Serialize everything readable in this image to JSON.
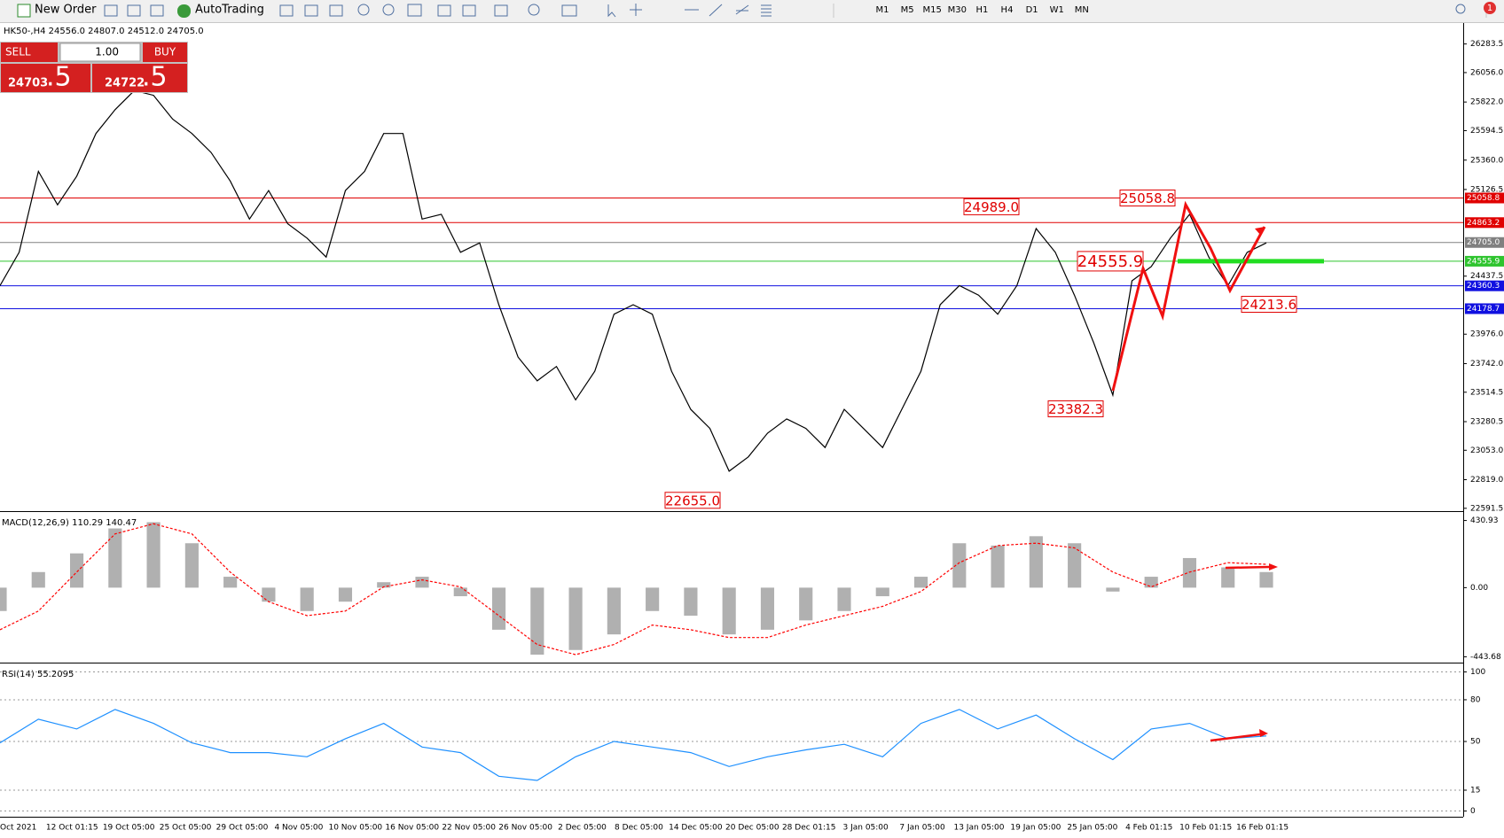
{
  "toolbar": {
    "buttons": [
      "New Order",
      "AutoTrading"
    ],
    "timeframes": [
      "M1",
      "M5",
      "M15",
      "M30",
      "H1",
      "H4",
      "D1",
      "W1",
      "MN"
    ],
    "notifications": "1"
  },
  "trade_panel": {
    "sell": "SELL",
    "buy": "BUY",
    "volume": "1.00",
    "bid_main": "24703",
    "bid_pips": ".5",
    "ask_main": "24722",
    "ask_pips": ".5"
  },
  "chart_data": [
    {
      "type": "line",
      "title": "HK50-,H4 24556.0 24807.0 24512.0 24705.0",
      "series": [
        {
          "color": "#000000",
          "values": [
            24362,
            24627,
            25270,
            25005,
            25232,
            25572,
            25761,
            25913,
            25875,
            25686,
            25572,
            25421,
            25194,
            24891,
            25118,
            24854,
            24740,
            24589,
            25118,
            25270,
            25572,
            25572,
            24891,
            24929,
            24627,
            24702,
            24210,
            23794,
            23605,
            23719,
            23454,
            23681,
            24135,
            24210,
            24135,
            23681,
            23378,
            23227,
            22887,
            23000,
            23189,
            23302,
            23227,
            23075,
            23378,
            23227,
            23075,
            23378,
            23681,
            24210,
            24362,
            24286,
            24135,
            24362,
            24816,
            24627,
            24286,
            23908,
            23492,
            24400,
            24513,
            24740,
            24929,
            24589,
            24362,
            24627,
            24702
          ]
        }
      ],
      "ylim": [
        22569,
        26450
      ],
      "yticks": [
        26283.5,
        {
          "value": 26056,
          "label": "26056.0"
        },
        {
          "value": 25822,
          "label": "25822.0"
        },
        25594.5,
        {
          "value": 25360,
          "label": "25360.0"
        },
        25126.5,
        24437.5,
        {
          "value": 23976,
          "label": "23976.0"
        },
        {
          "value": 23742,
          "label": "23742.0"
        },
        23514.5,
        23280.5,
        {
          "value": 23053,
          "label": "23053.0"
        },
        {
          "value": 22819,
          "label": "22819.0"
        },
        22591.5
      ],
      "grid": false,
      "levels": [
        {
          "value": 25058.8,
          "label": "25058.8",
          "color": "#e00000"
        },
        {
          "value": 24863.2,
          "label": "24863.2",
          "color": "#e00000"
        },
        {
          "value": 24705,
          "label": "24705.0",
          "color": "#808080"
        },
        {
          "value": 24555.9,
          "label": "24555.9",
          "color": "#2ec42e"
        },
        {
          "value": 24360.3,
          "label": "24360.3",
          "color": "#1010e0"
        },
        {
          "value": 24178.7,
          "label": "24178.7",
          "color": "#1010e0"
        }
      ],
      "annotations": [
        {
          "value": 24989,
          "label": "24989.0"
        },
        {
          "value": 25058.8,
          "label": "25058.8"
        },
        {
          "value": 24555.9,
          "label": "24555.9"
        },
        {
          "value": 24213.6,
          "label": "24213.6"
        },
        {
          "value": 23382.3,
          "label": "23382.3"
        },
        {
          "value": 22655,
          "label": "22655.0"
        }
      ]
    },
    {
      "type": "bar",
      "title": "MACD(12,26,9) 110.29 140.47",
      "series": [
        {
          "kind": "histogram",
          "color": "#b0b0b0",
          "values": [
            -150,
            100,
            220,
            380,
            420,
            285,
            70,
            -90,
            -150,
            -90,
            35,
            70,
            -55,
            -270,
            -430,
            -400,
            -300,
            -150,
            -180,
            -300,
            -270,
            -210,
            -150,
            -55,
            70,
            285,
            270,
            330,
            285,
            -25,
            70,
            190,
            130,
            100
          ]
        },
        {
          "kind": "line",
          "color": "#ff0000",
          "values": [
            -270,
            -150,
            100,
            345,
            410,
            345,
            100,
            -90,
            -180,
            -150,
            5,
            50,
            5,
            -180,
            -365,
            -430,
            -365,
            -240,
            -270,
            -320,
            -320,
            -240,
            -180,
            -120,
            -25,
            160,
            270,
            285,
            255,
            100,
            5,
            100,
            160,
            150
          ]
        }
      ],
      "ylim": [
        -481,
        474
      ],
      "yticks": [
        430.93,
        {
          "value": 0,
          "label": "0.00"
        },
        -443.68
      ],
      "grid": false
    },
    {
      "type": "line",
      "title": "RSI(14) 55.2095",
      "series": [
        {
          "color": "#1e90ff",
          "values": [
            49,
            66,
            59,
            73,
            63,
            49,
            42,
            42,
            39,
            52,
            63,
            46,
            42,
            25,
            22,
            39,
            50,
            46,
            42,
            32,
            39,
            44,
            48,
            39,
            63,
            73,
            59,
            69,
            52,
            37,
            59,
            63,
            52,
            54
          ]
        }
      ],
      "ylim": [
        -4.1,
        104.8
      ],
      "yticks": [
        100,
        80,
        50,
        15,
        0
      ],
      "grid": true,
      "xtick_labels": [
        "Oct 2021",
        "12 Oct 01:15",
        "19 Oct 05:00",
        "25 Oct 05:00",
        "29 Oct 05:00",
        "4 Nov 05:00",
        "10 Nov 05:00",
        "16 Nov 05:00",
        "22 Nov 05:00",
        "26 Nov 05:00",
        "2 Dec 05:00",
        "8 Dec 05:00",
        "14 Dec 05:00",
        "20 Dec 05:00",
        "28 Dec 01:15",
        "3 Jan 05:00",
        "7 Jan 05:00",
        "13 Jan 05:00",
        "19 Jan 05:00",
        "25 Jan 05:00",
        "4 Feb 01:15",
        "10 Feb 01:15",
        "16 Feb 01:15"
      ]
    }
  ]
}
